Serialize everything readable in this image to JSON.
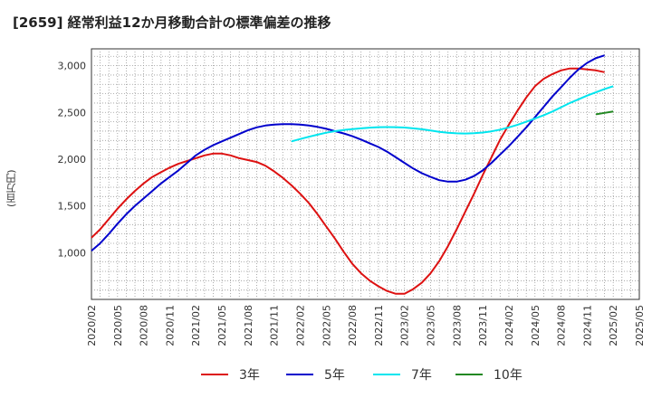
{
  "title": "[2659]  経常利益12か月移動合計の標準偏差の推移",
  "ylabel": "(百万円)",
  "chart_data": {
    "type": "line",
    "title": "[2659]  経常利益12か月移動合計の標準偏差の推移",
    "xlabel": "",
    "ylabel": "(百万円)",
    "x_ticks": [
      "2020/02",
      "2020/05",
      "2020/08",
      "2020/11",
      "2021/02",
      "2021/05",
      "2021/08",
      "2021/11",
      "2022/02",
      "2022/05",
      "2022/08",
      "2022/11",
      "2023/02",
      "2023/05",
      "2023/08",
      "2023/11",
      "2024/02",
      "2024/05",
      "2024/08",
      "2024/11",
      "2025/02",
      "2025/05"
    ],
    "y_ticks": [
      1000,
      1500,
      2000,
      2500,
      3000
    ],
    "ylim": [
      500,
      3180
    ],
    "grid": true,
    "legend": "bottom",
    "series": [
      {
        "name": "3年",
        "color": "#dd1111",
        "points": [
          [
            "2020/02",
            1160
          ],
          [
            "2020/03",
            1250
          ],
          [
            "2020/04",
            1360
          ],
          [
            "2020/05",
            1470
          ],
          [
            "2020/06",
            1570
          ],
          [
            "2020/07",
            1660
          ],
          [
            "2020/08",
            1740
          ],
          [
            "2020/09",
            1810
          ],
          [
            "2020/10",
            1860
          ],
          [
            "2020/11",
            1910
          ],
          [
            "2020/12",
            1950
          ],
          [
            "2021/01",
            1980
          ],
          [
            "2021/02",
            2010
          ],
          [
            "2021/03",
            2040
          ],
          [
            "2021/04",
            2060
          ],
          [
            "2021/05",
            2060
          ],
          [
            "2021/06",
            2040
          ],
          [
            "2021/07",
            2010
          ],
          [
            "2021/08",
            1990
          ],
          [
            "2021/09",
            1970
          ],
          [
            "2021/10",
            1930
          ],
          [
            "2021/11",
            1870
          ],
          [
            "2021/12",
            1800
          ],
          [
            "2022/01",
            1720
          ],
          [
            "2022/02",
            1630
          ],
          [
            "2022/03",
            1530
          ],
          [
            "2022/04",
            1410
          ],
          [
            "2022/05",
            1280
          ],
          [
            "2022/06",
            1150
          ],
          [
            "2022/07",
            1010
          ],
          [
            "2022/08",
            880
          ],
          [
            "2022/09",
            780
          ],
          [
            "2022/10",
            700
          ],
          [
            "2022/11",
            640
          ],
          [
            "2022/12",
            590
          ],
          [
            "2023/01",
            560
          ],
          [
            "2023/02",
            560
          ],
          [
            "2023/03",
            610
          ],
          [
            "2023/04",
            680
          ],
          [
            "2023/05",
            780
          ],
          [
            "2023/06",
            910
          ],
          [
            "2023/07",
            1070
          ],
          [
            "2023/08",
            1250
          ],
          [
            "2023/09",
            1440
          ],
          [
            "2023/10",
            1630
          ],
          [
            "2023/11",
            1830
          ],
          [
            "2023/12",
            2020
          ],
          [
            "2024/01",
            2210
          ],
          [
            "2024/02",
            2370
          ],
          [
            "2024/03",
            2520
          ],
          [
            "2024/04",
            2660
          ],
          [
            "2024/05",
            2780
          ],
          [
            "2024/06",
            2860
          ],
          [
            "2024/07",
            2910
          ],
          [
            "2024/08",
            2950
          ],
          [
            "2024/09",
            2970
          ],
          [
            "2024/10",
            2970
          ],
          [
            "2024/11",
            2960
          ],
          [
            "2024/12",
            2950
          ],
          [
            "2025/01",
            2930
          ]
        ]
      },
      {
        "name": "5年",
        "color": "#0000cc",
        "points": [
          [
            "2020/02",
            1020
          ],
          [
            "2020/03",
            1100
          ],
          [
            "2020/04",
            1200
          ],
          [
            "2020/05",
            1310
          ],
          [
            "2020/06",
            1410
          ],
          [
            "2020/07",
            1500
          ],
          [
            "2020/08",
            1580
          ],
          [
            "2020/09",
            1660
          ],
          [
            "2020/10",
            1740
          ],
          [
            "2020/11",
            1810
          ],
          [
            "2020/12",
            1880
          ],
          [
            "2021/01",
            1960
          ],
          [
            "2021/02",
            2040
          ],
          [
            "2021/03",
            2100
          ],
          [
            "2021/04",
            2150
          ],
          [
            "2021/05",
            2190
          ],
          [
            "2021/06",
            2230
          ],
          [
            "2021/07",
            2270
          ],
          [
            "2021/08",
            2310
          ],
          [
            "2021/09",
            2340
          ],
          [
            "2021/10",
            2360
          ],
          [
            "2021/11",
            2370
          ],
          [
            "2021/12",
            2375
          ],
          [
            "2022/01",
            2375
          ],
          [
            "2022/02",
            2370
          ],
          [
            "2022/03",
            2360
          ],
          [
            "2022/04",
            2345
          ],
          [
            "2022/05",
            2325
          ],
          [
            "2022/06",
            2300
          ],
          [
            "2022/07",
            2275
          ],
          [
            "2022/08",
            2245
          ],
          [
            "2022/09",
            2210
          ],
          [
            "2022/10",
            2170
          ],
          [
            "2022/11",
            2130
          ],
          [
            "2022/12",
            2080
          ],
          [
            "2023/01",
            2020
          ],
          [
            "2023/02",
            1960
          ],
          [
            "2023/03",
            1900
          ],
          [
            "2023/04",
            1850
          ],
          [
            "2023/05",
            1810
          ],
          [
            "2023/06",
            1775
          ],
          [
            "2023/07",
            1760
          ],
          [
            "2023/08",
            1760
          ],
          [
            "2023/09",
            1780
          ],
          [
            "2023/10",
            1820
          ],
          [
            "2023/11",
            1880
          ],
          [
            "2023/12",
            1960
          ],
          [
            "2024/01",
            2050
          ],
          [
            "2024/02",
            2140
          ],
          [
            "2024/03",
            2240
          ],
          [
            "2024/04",
            2340
          ],
          [
            "2024/05",
            2450
          ],
          [
            "2024/06",
            2560
          ],
          [
            "2024/07",
            2670
          ],
          [
            "2024/08",
            2770
          ],
          [
            "2024/09",
            2870
          ],
          [
            "2024/10",
            2960
          ],
          [
            "2024/11",
            3030
          ],
          [
            "2024/12",
            3080
          ],
          [
            "2025/01",
            3110
          ]
        ]
      },
      {
        "name": "7年",
        "color": "#00e5ee",
        "points": [
          [
            "2022/01",
            2190
          ],
          [
            "2022/02",
            2215
          ],
          [
            "2022/03",
            2240
          ],
          [
            "2022/04",
            2262
          ],
          [
            "2022/05",
            2283
          ],
          [
            "2022/06",
            2300
          ],
          [
            "2022/07",
            2312
          ],
          [
            "2022/08",
            2322
          ],
          [
            "2022/09",
            2330
          ],
          [
            "2022/10",
            2337
          ],
          [
            "2022/11",
            2342
          ],
          [
            "2022/12",
            2343
          ],
          [
            "2023/01",
            2342
          ],
          [
            "2023/02",
            2338
          ],
          [
            "2023/03",
            2330
          ],
          [
            "2023/04",
            2320
          ],
          [
            "2023/05",
            2307
          ],
          [
            "2023/06",
            2293
          ],
          [
            "2023/07",
            2282
          ],
          [
            "2023/08",
            2276
          ],
          [
            "2023/09",
            2274
          ],
          [
            "2023/10",
            2277
          ],
          [
            "2023/11",
            2285
          ],
          [
            "2023/12",
            2298
          ],
          [
            "2024/01",
            2316
          ],
          [
            "2024/02",
            2340
          ],
          [
            "2024/03",
            2368
          ],
          [
            "2024/04",
            2400
          ],
          [
            "2024/05",
            2435
          ],
          [
            "2024/06",
            2470
          ],
          [
            "2024/07",
            2510
          ],
          [
            "2024/08",
            2555
          ],
          [
            "2024/09",
            2600
          ],
          [
            "2024/10",
            2640
          ],
          [
            "2024/11",
            2680
          ],
          [
            "2024/12",
            2715
          ],
          [
            "2025/01",
            2750
          ],
          [
            "2025/02",
            2780
          ]
        ]
      },
      {
        "name": "10年",
        "color": "#228822",
        "points": [
          [
            "2024/12",
            2480
          ],
          [
            "2025/01",
            2495
          ],
          [
            "2025/02",
            2510
          ]
        ]
      }
    ]
  }
}
